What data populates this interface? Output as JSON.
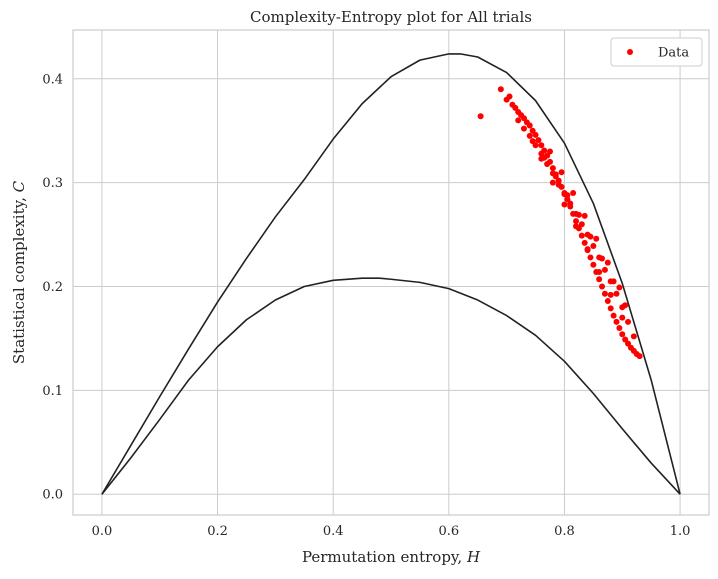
{
  "chart_data": {
    "type": "scatter",
    "title": "Complexity-Entropy plot for All trials",
    "xlabel_text": "Permutation entropy, ",
    "xlabel_var": "H",
    "ylabel_text": "Statistical complexity, ",
    "ylabel_var": "C",
    "xlim": [
      -0.05,
      1.05
    ],
    "ylim": [
      -0.02,
      0.447
    ],
    "xticks": [
      0.0,
      0.2,
      0.4,
      0.6,
      0.8,
      1.0
    ],
    "xtick_labels": [
      "0.0",
      "0.2",
      "0.4",
      "0.6",
      "0.8",
      "1.0"
    ],
    "yticks": [
      0.0,
      0.1,
      0.2,
      0.3,
      0.4
    ],
    "ytick_labels": [
      "0.0",
      "0.1",
      "0.2",
      "0.3",
      "0.4"
    ],
    "grid": true,
    "legend": {
      "position": "top-right",
      "entries": [
        "Data"
      ]
    },
    "colors": {
      "data": "#ff0000",
      "bounds": "#222222",
      "grid": "#cccccc"
    },
    "upper_bound": {
      "x": [
        0.0,
        0.05,
        0.1,
        0.15,
        0.2,
        0.25,
        0.3,
        0.35,
        0.4,
        0.45,
        0.5,
        0.55,
        0.6,
        0.62,
        0.65,
        0.7,
        0.75,
        0.8,
        0.85,
        0.9,
        0.95,
        1.0
      ],
      "y": [
        0.0,
        0.047,
        0.094,
        0.14,
        0.185,
        0.227,
        0.267,
        0.303,
        0.342,
        0.376,
        0.402,
        0.418,
        0.424,
        0.424,
        0.421,
        0.406,
        0.379,
        0.338,
        0.28,
        0.203,
        0.11,
        0.0
      ]
    },
    "lower_bound": {
      "x": [
        0.0,
        0.05,
        0.1,
        0.15,
        0.2,
        0.25,
        0.3,
        0.35,
        0.4,
        0.45,
        0.48,
        0.5,
        0.55,
        0.6,
        0.65,
        0.7,
        0.75,
        0.8,
        0.85,
        0.9,
        0.95,
        1.0
      ],
      "y": [
        0.0,
        0.035,
        0.072,
        0.11,
        0.142,
        0.168,
        0.187,
        0.2,
        0.206,
        0.208,
        0.208,
        0.207,
        0.204,
        0.198,
        0.187,
        0.172,
        0.153,
        0.128,
        0.097,
        0.063,
        0.03,
        0.0
      ]
    },
    "series": [
      {
        "name": "Data",
        "x": [
          0.655,
          0.69,
          0.7,
          0.705,
          0.71,
          0.715,
          0.72,
          0.725,
          0.73,
          0.735,
          0.74,
          0.745,
          0.75,
          0.755,
          0.76,
          0.765,
          0.77,
          0.775,
          0.78,
          0.785,
          0.79,
          0.795,
          0.8,
          0.805,
          0.81,
          0.815,
          0.82,
          0.825,
          0.83,
          0.835,
          0.84,
          0.845,
          0.85,
          0.855,
          0.86,
          0.865,
          0.87,
          0.875,
          0.88,
          0.885,
          0.89,
          0.895,
          0.9,
          0.905,
          0.91,
          0.915,
          0.92,
          0.925,
          0.93,
          0.72,
          0.73,
          0.74,
          0.75,
          0.76,
          0.77,
          0.78,
          0.79,
          0.8,
          0.81,
          0.82,
          0.83,
          0.84,
          0.85,
          0.86,
          0.87,
          0.88,
          0.89,
          0.9,
          0.91,
          0.92,
          0.745,
          0.765,
          0.785,
          0.805,
          0.825,
          0.845,
          0.865,
          0.885,
          0.905,
          0.76,
          0.78,
          0.8,
          0.82,
          0.84,
          0.86,
          0.88,
          0.9,
          0.775,
          0.795,
          0.815,
          0.835,
          0.855,
          0.875,
          0.895
        ],
        "y": [
          0.364,
          0.39,
          0.38,
          0.383,
          0.375,
          0.372,
          0.368,
          0.365,
          0.362,
          0.358,
          0.355,
          0.35,
          0.346,
          0.341,
          0.336,
          0.331,
          0.326,
          0.32,
          0.314,
          0.308,
          0.302,
          0.296,
          0.29,
          0.284,
          0.277,
          0.27,
          0.263,
          0.256,
          0.249,
          0.242,
          0.235,
          0.228,
          0.221,
          0.214,
          0.207,
          0.2,
          0.193,
          0.186,
          0.179,
          0.172,
          0.166,
          0.16,
          0.154,
          0.149,
          0.145,
          0.141,
          0.138,
          0.135,
          0.133,
          0.36,
          0.352,
          0.345,
          0.336,
          0.328,
          0.318,
          0.309,
          0.298,
          0.289,
          0.28,
          0.27,
          0.26,
          0.25,
          0.239,
          0.228,
          0.216,
          0.205,
          0.193,
          0.18,
          0.166,
          0.152,
          0.34,
          0.324,
          0.306,
          0.288,
          0.269,
          0.248,
          0.227,
          0.205,
          0.182,
          0.323,
          0.3,
          0.279,
          0.258,
          0.236,
          0.214,
          0.192,
          0.17,
          0.33,
          0.31,
          0.29,
          0.268,
          0.246,
          0.223,
          0.199
        ]
      }
    ]
  }
}
